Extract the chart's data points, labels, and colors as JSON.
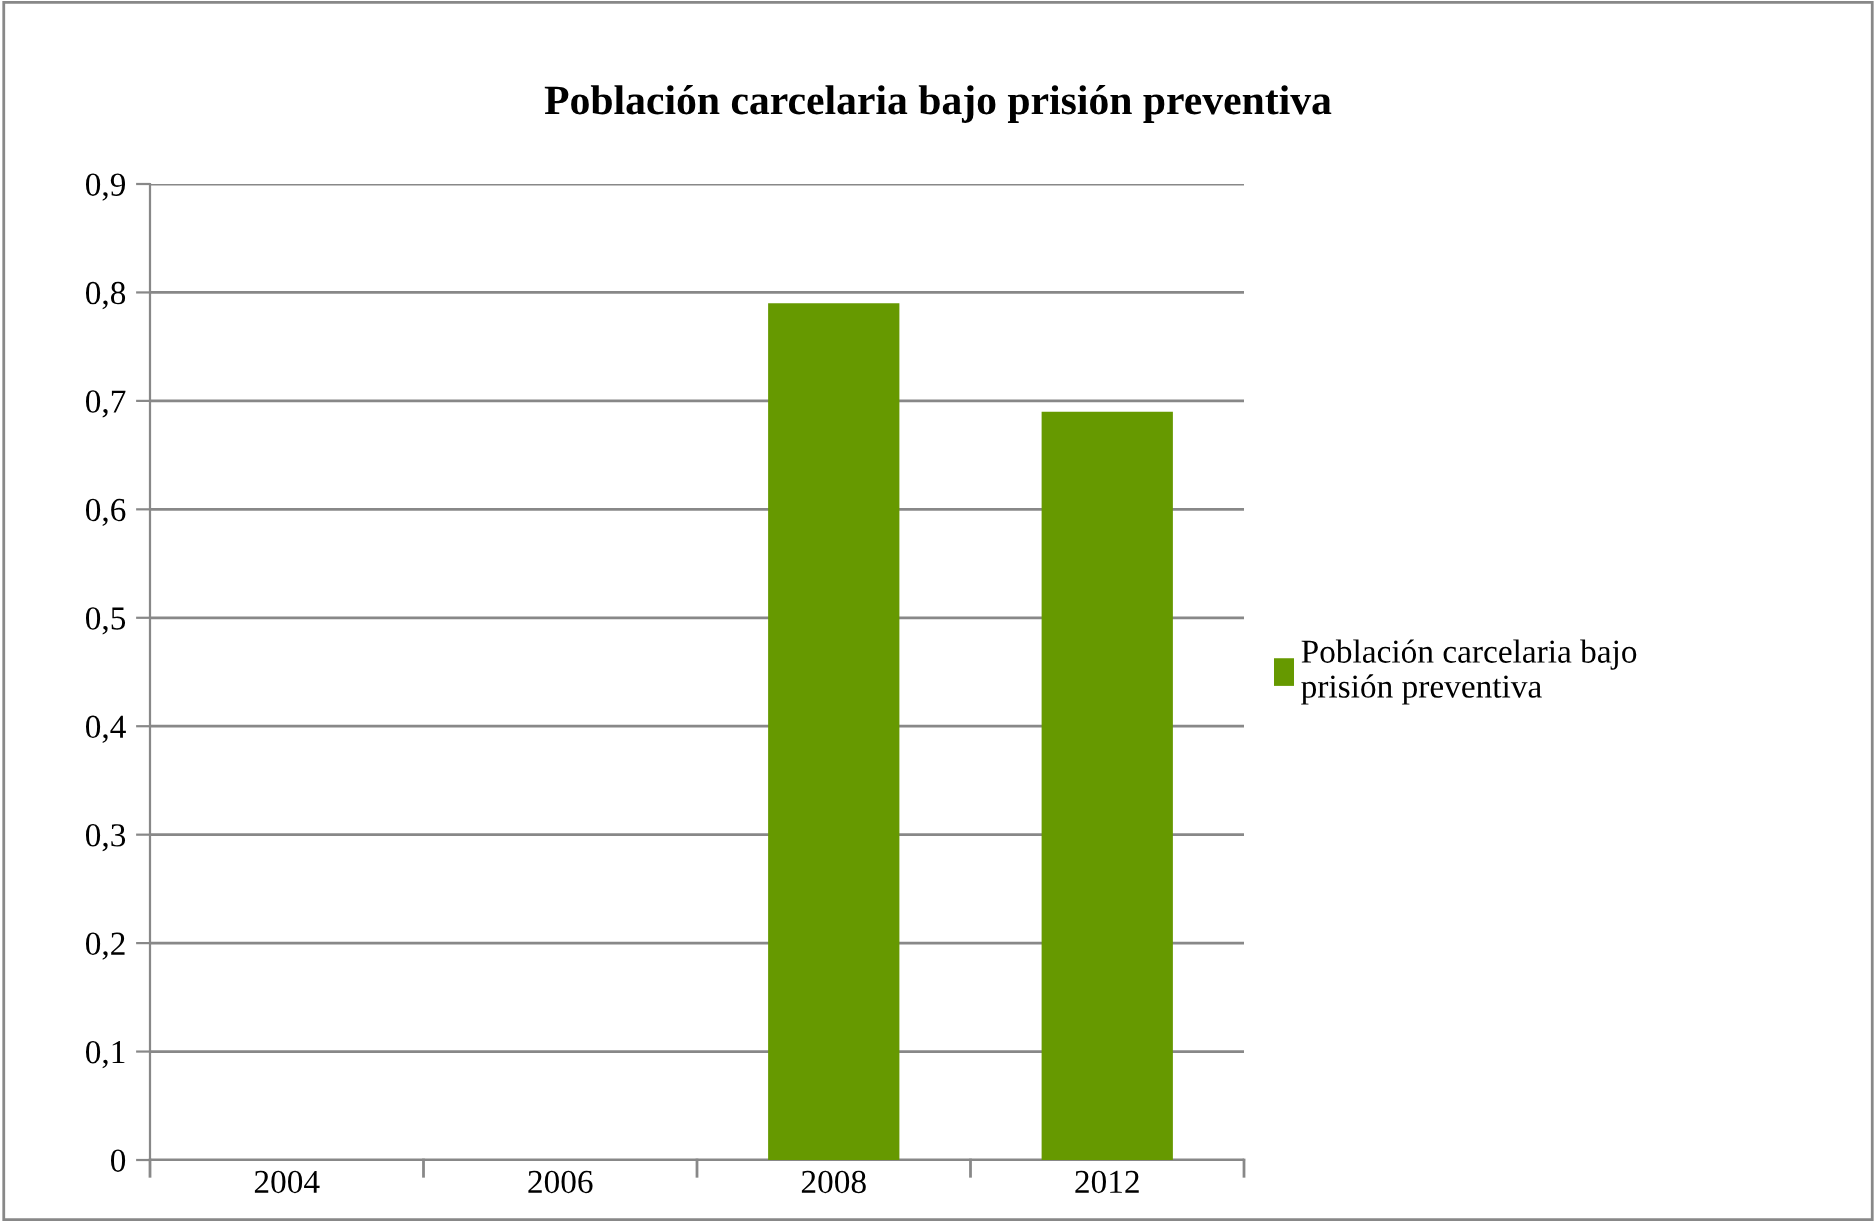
{
  "chart_data": {
    "type": "bar",
    "title": "Población carcelaria bajo prisión preventiva",
    "categories": [
      "2004",
      "2006",
      "2008",
      "2012"
    ],
    "series": [
      {
        "name": "Población carcelaria bajo prisión preventiva",
        "color": "#669900",
        "values": [
          null,
          null,
          0.79,
          0.69
        ]
      }
    ],
    "ylim": [
      0,
      0.9
    ],
    "yticks": [
      {
        "value": 0,
        "label": "0"
      },
      {
        "value": 0.1,
        "label": "0,1"
      },
      {
        "value": 0.2,
        "label": "0,2"
      },
      {
        "value": 0.3,
        "label": "0,3"
      },
      {
        "value": 0.4,
        "label": "0,4"
      },
      {
        "value": 0.5,
        "label": "0,5"
      },
      {
        "value": 0.6,
        "label": "0,6"
      },
      {
        "value": 0.7,
        "label": "0,7"
      },
      {
        "value": 0.8,
        "label": "0,8"
      },
      {
        "value": 0.9,
        "label": "0,9"
      }
    ],
    "grid": "y",
    "legend": "right"
  }
}
